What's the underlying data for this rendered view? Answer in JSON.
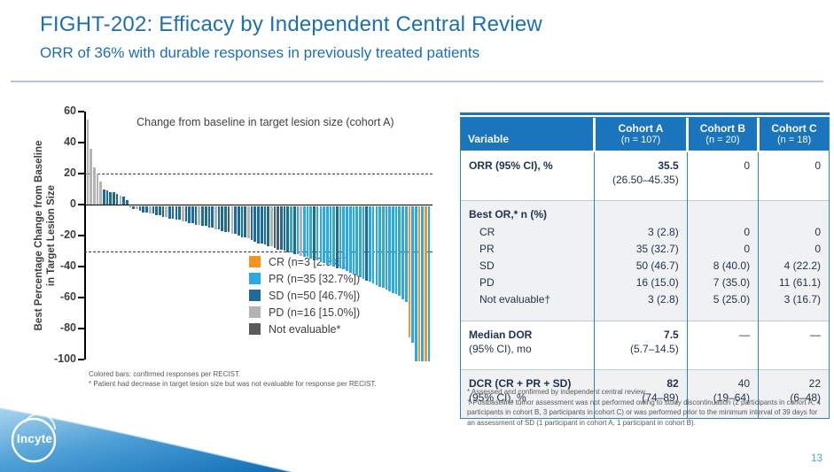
{
  "slide": {
    "title": "FIGHT-202: Efficacy by Independent Central Review",
    "subtitle": "ORR of 36% with durable responses in previously treated patients",
    "page_number": "13",
    "logo_text": "Incyte",
    "accent_color": "#1B75BC"
  },
  "chart_data": {
    "type": "bar",
    "title": "Change from baseline in target lesion size (cohort A)",
    "ylabel_line1": "Best Percentage Change from Baseline",
    "ylabel_line2": "in Target Lesion Size",
    "ylim": [
      -100,
      60
    ],
    "yticks": [
      60,
      40,
      20,
      0,
      -20,
      -40,
      -60,
      -80,
      -100
    ],
    "reference_lines": [
      20,
      -30
    ],
    "grid": "off",
    "legend_position": "inside-lower-left",
    "legend": [
      {
        "key": "CR",
        "label": "CR (n=3 [2.8%])",
        "color": "#F7941E"
      },
      {
        "key": "PR",
        "label": "PR (n=35 [32.7%])",
        "color": "#29ABE2"
      },
      {
        "key": "SD",
        "label": "SD (n=50 [46.7%])",
        "color": "#1C6B9F"
      },
      {
        "key": "PD",
        "label": "PD (n=16 [15.0%])",
        "color": "#B3B3B3"
      },
      {
        "key": "NE",
        "label": "Not evaluable*",
        "color": "#58595B"
      }
    ],
    "bars": [
      [
        55,
        "PD"
      ],
      [
        36,
        "PD"
      ],
      [
        24,
        "PD"
      ],
      [
        20,
        "PD"
      ],
      [
        15,
        "PD"
      ],
      [
        10,
        "SD"
      ],
      [
        9,
        "SD"
      ],
      [
        8,
        "SD"
      ],
      [
        8,
        "SD"
      ],
      [
        7,
        "SD"
      ],
      [
        6,
        "PD"
      ],
      [
        5,
        "SD"
      ],
      [
        3,
        "SD"
      ],
      [
        -1,
        "SD"
      ],
      [
        -2,
        "SD"
      ],
      [
        -2,
        "PD"
      ],
      [
        -3,
        "SD"
      ],
      [
        -4,
        "SD"
      ],
      [
        -4,
        "SD"
      ],
      [
        -5,
        "PD"
      ],
      [
        -5,
        "SD"
      ],
      [
        -6,
        "SD"
      ],
      [
        -6,
        "SD"
      ],
      [
        -7,
        "SD"
      ],
      [
        -7,
        "PD"
      ],
      [
        -8,
        "SD"
      ],
      [
        -8,
        "SD"
      ],
      [
        -9,
        "SD"
      ],
      [
        -9,
        "SD"
      ],
      [
        -10,
        "PD"
      ],
      [
        -10,
        "SD"
      ],
      [
        -11,
        "SD"
      ],
      [
        -11,
        "SD"
      ],
      [
        -12,
        "SD"
      ],
      [
        -12,
        "PD"
      ],
      [
        -13,
        "SD"
      ],
      [
        -13,
        "SD"
      ],
      [
        -14,
        "SD"
      ],
      [
        -14,
        "SD"
      ],
      [
        -15,
        "PD"
      ],
      [
        -15,
        "SD"
      ],
      [
        -16,
        "SD"
      ],
      [
        -17,
        "SD"
      ],
      [
        -17,
        "SD"
      ],
      [
        -18,
        "PD"
      ],
      [
        -18,
        "SD"
      ],
      [
        -19,
        "SD"
      ],
      [
        -20,
        "SD"
      ],
      [
        -20,
        "SD"
      ],
      [
        -21,
        "PD"
      ],
      [
        -22,
        "SD"
      ],
      [
        -23,
        "SD"
      ],
      [
        -24,
        "SD"
      ],
      [
        -24,
        "SD"
      ],
      [
        -25,
        "SD"
      ],
      [
        -26,
        "SD"
      ],
      [
        -26,
        "PD"
      ],
      [
        -27,
        "SD"
      ],
      [
        -28,
        "NE"
      ],
      [
        -28,
        "SD"
      ],
      [
        -29,
        "SD"
      ],
      [
        -30,
        "SD"
      ],
      [
        -30,
        "PR"
      ],
      [
        -31,
        "SD"
      ],
      [
        -31,
        "PR"
      ],
      [
        -32,
        "PD"
      ],
      [
        -33,
        "PR"
      ],
      [
        -33,
        "PR"
      ],
      [
        -34,
        "PR"
      ],
      [
        -35,
        "SD"
      ],
      [
        -35,
        "PR"
      ],
      [
        -36,
        "PR"
      ],
      [
        -37,
        "PR"
      ],
      [
        -38,
        "PR"
      ],
      [
        -38,
        "PR"
      ],
      [
        -39,
        "PR"
      ],
      [
        -40,
        "SD"
      ],
      [
        -40,
        "PR"
      ],
      [
        -41,
        "PR"
      ],
      [
        -42,
        "PR"
      ],
      [
        -43,
        "PR"
      ],
      [
        -44,
        "PR"
      ],
      [
        -45,
        "PR"
      ],
      [
        -46,
        "PR"
      ],
      [
        -47,
        "PR"
      ],
      [
        -48,
        "SD"
      ],
      [
        -49,
        "PR"
      ],
      [
        -50,
        "PR"
      ],
      [
        -51,
        "PR"
      ],
      [
        -52,
        "PR"
      ],
      [
        -53,
        "PR"
      ],
      [
        -54,
        "PR"
      ],
      [
        -55,
        "PR"
      ],
      [
        -56,
        "PR"
      ],
      [
        -57,
        "PR"
      ],
      [
        -58,
        "PR"
      ],
      [
        -60,
        "PR"
      ],
      [
        -62,
        "PR"
      ],
      [
        -85,
        "CR"
      ],
      [
        -88,
        "PR"
      ],
      [
        -100,
        "PR"
      ],
      [
        -100,
        "CR"
      ],
      [
        -100,
        "PR"
      ],
      [
        -100,
        "CR"
      ],
      [
        -100,
        "PR"
      ]
    ],
    "footnotes": [
      "Colored bars: confirmed responses per RECIST.",
      "* Patient had decrease in target lesion size but was not evaluable for response per RECIST."
    ]
  },
  "table": {
    "header": {
      "variable_label": "Variable",
      "cohorts": [
        {
          "name": "Cohort A",
          "n": "(n = 107)"
        },
        {
          "name": "Cohort B",
          "n": "(n = 20)"
        },
        {
          "name": "Cohort C",
          "n": "(n = 18)"
        }
      ]
    },
    "rows": [
      {
        "section_start": true,
        "shade": false,
        "label": [
          {
            "t": "ORR (95% CI), %",
            "b": true
          }
        ],
        "cells": [
          [
            {
              "t": "35.5",
              "b": true
            },
            {
              "t": "(26.50–45.35)"
            }
          ],
          [
            {
              "t": "0"
            }
          ],
          [
            {
              "t": "0"
            }
          ]
        ]
      },
      {
        "section_start": true,
        "shade": true,
        "label": [
          {
            "t": "Best OR,* n (%)",
            "b": true
          }
        ],
        "cells": [
          [],
          [],
          []
        ]
      },
      {
        "shade": true,
        "indent": true,
        "label": [
          {
            "t": "CR"
          }
        ],
        "cells": [
          [
            {
              "t": "3 (2.8)"
            }
          ],
          [
            {
              "t": "0"
            }
          ],
          [
            {
              "t": "0"
            }
          ]
        ]
      },
      {
        "shade": true,
        "indent": true,
        "label": [
          {
            "t": "PR"
          }
        ],
        "cells": [
          [
            {
              "t": "35 (32.7)"
            }
          ],
          [
            {
              "t": "0"
            }
          ],
          [
            {
              "t": "0"
            }
          ]
        ]
      },
      {
        "shade": true,
        "indent": true,
        "label": [
          {
            "t": "SD"
          }
        ],
        "cells": [
          [
            {
              "t": "50 (46.7)"
            }
          ],
          [
            {
              "t": "8 (40.0)"
            }
          ],
          [
            {
              "t": "4 (22.2)"
            }
          ]
        ]
      },
      {
        "shade": true,
        "indent": true,
        "label": [
          {
            "t": "PD"
          }
        ],
        "cells": [
          [
            {
              "t": "16 (15.0)"
            }
          ],
          [
            {
              "t": "7 (35.0)"
            }
          ],
          [
            {
              "t": "11 (61.1)"
            }
          ]
        ]
      },
      {
        "shade": true,
        "indent": true,
        "label": [
          {
            "t": "Not evaluable†"
          }
        ],
        "cells": [
          [
            {
              "t": "3 (2.8)"
            }
          ],
          [
            {
              "t": "5 (25.0)"
            }
          ],
          [
            {
              "t": "3 (16.7)"
            }
          ]
        ]
      },
      {
        "section_start": true,
        "shade": false,
        "label": [
          {
            "t": "Median DOR",
            "b": true
          },
          {
            "t": "(95% CI), mo"
          }
        ],
        "cells": [
          [
            {
              "t": "7.5",
              "b": true
            },
            {
              "t": "(5.7–14.5)"
            }
          ],
          [
            {
              "t": "—"
            }
          ],
          [
            {
              "t": "—"
            }
          ]
        ]
      },
      {
        "section_start": true,
        "shade": true,
        "label": [
          {
            "t": "DCR (CR + PR + SD)",
            "b": true
          },
          {
            "t": "(95% CI), %"
          }
        ],
        "cells": [
          [
            {
              "t": "82",
              "b": true
            },
            {
              "t": "(74–89)"
            }
          ],
          [
            {
              "t": "40"
            },
            {
              "t": "(19–64)"
            }
          ],
          [
            {
              "t": "22"
            },
            {
              "t": "(6–48)"
            }
          ]
        ]
      }
    ]
  },
  "table_footnotes": [
    "* Assessed and confirmed by independent central review.",
    "† Postbaseline tumor assessment was not performed owing to study discontinuation (2 participants in cohort A, 4 participants in cohort B, 3 participants in cohort C) or was performed prior to the minimum interval of 39 days for an assessment of SD (1 participant in cohort A, 1 participant in cohort B)."
  ]
}
